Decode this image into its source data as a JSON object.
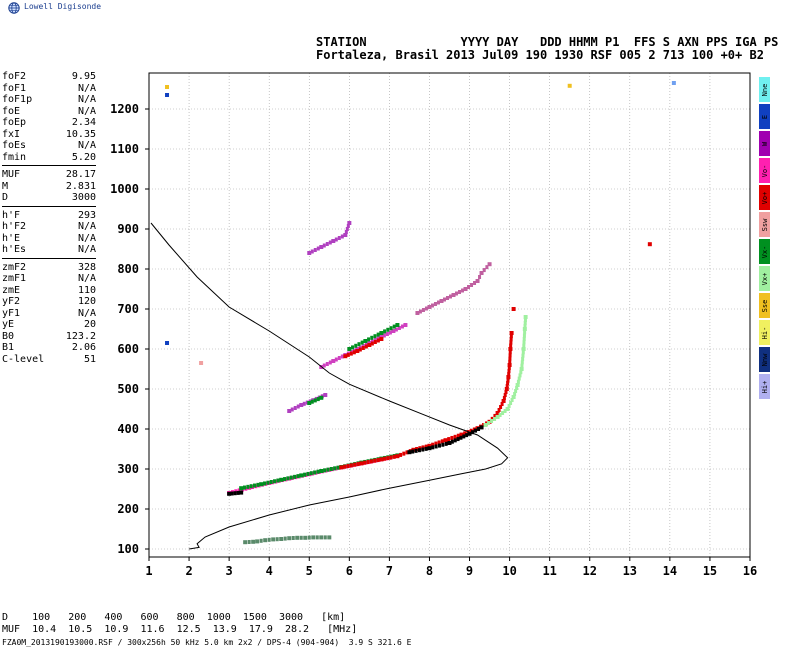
{
  "brand": {
    "name": "Lowell Digisonde",
    "icon": "globe-icon"
  },
  "station_header": {
    "line1": "STATION             YYYY DAY   DDD HHMM P1  FFS S AXN PPS IGA PS",
    "line2": "Fortaleza, Brasil 2013 Jul09 190 1930 RSF 005 2 713 100 +0+ B2"
  },
  "params": {
    "group1": [
      {
        "label": "foF2",
        "value": "9.95"
      },
      {
        "label": "foF1",
        "value": "N/A"
      },
      {
        "label": "foF1p",
        "value": "N/A"
      },
      {
        "label": "foE",
        "value": "N/A"
      },
      {
        "label": "foEp",
        "value": "2.34"
      },
      {
        "label": "fxI",
        "value": "10.35"
      },
      {
        "label": "foEs",
        "value": "N/A"
      },
      {
        "label": "fmin",
        "value": "5.20"
      }
    ],
    "group2": [
      {
        "label": "MUF",
        "value": "28.17"
      },
      {
        "label": "M",
        "value": "2.831"
      },
      {
        "label": "D",
        "value": "3000"
      }
    ],
    "group3": [
      {
        "label": "h'F",
        "value": "293"
      },
      {
        "label": "h'F2",
        "value": "N/A"
      },
      {
        "label": "h'E",
        "value": "N/A"
      },
      {
        "label": "h'Es",
        "value": "N/A"
      }
    ],
    "group4": [
      {
        "label": "zmF2",
        "value": "328"
      },
      {
        "label": "zmF1",
        "value": "N/A"
      },
      {
        "label": "zmE",
        "value": "110"
      },
      {
        "label": "yF2",
        "value": "120"
      },
      {
        "label": "yF1",
        "value": "N/A"
      },
      {
        "label": "yE",
        "value": "20"
      },
      {
        "label": "B0",
        "value": "123.2"
      },
      {
        "label": "B1",
        "value": "2.06"
      },
      {
        "label": "C-level",
        "value": "51"
      }
    ]
  },
  "legend": [
    {
      "label": "Nne",
      "color": "#70f0f0"
    },
    {
      "label": "E",
      "color": "#1040c0"
    },
    {
      "label": "W",
      "color": "#a000b0"
    },
    {
      "label": "Vo-",
      "color": "#ff20b0"
    },
    {
      "label": "Vo+",
      "color": "#e00000"
    },
    {
      "label": "Ssw",
      "color": "#f0a0a0"
    },
    {
      "label": "Vx-",
      "color": "#009020"
    },
    {
      "label": "Vx+",
      "color": "#a0f0a0"
    },
    {
      "label": "Sse",
      "color": "#f0c020"
    },
    {
      "label": "Hi-",
      "color": "#f0f060"
    },
    {
      "label": "Nnw",
      "color": "#103080"
    },
    {
      "label": "Hi+",
      "color": "#b0b0f0"
    }
  ],
  "muf_table": {
    "row1": "D    100   200   400   600   800  1000  1500  3000   [km]",
    "row2": "MUF  10.4  10.5  10.9  11.6  12.5  13.9  17.9  28.2   [MHz]"
  },
  "footer": "FZA0M_2013190193000.RSF / 300x256h 50 kHz 5.0 km 2x2 / DPS-4 (904-904)  3.9 S 321.6 E",
  "chart_data": {
    "type": "scatter",
    "xlim": [
      1,
      16
    ],
    "ylim": [
      80,
      1290
    ],
    "xticks": [
      1,
      2,
      3,
      4,
      5,
      6,
      7,
      8,
      9,
      10,
      11,
      12,
      13,
      14,
      15,
      16
    ],
    "yticks": [
      100,
      200,
      300,
      400,
      500,
      600,
      700,
      800,
      900,
      1000,
      1100,
      1200
    ],
    "grid": true,
    "profile_curve": {
      "color": "#000000",
      "points": [
        [
          2.0,
          100
        ],
        [
          2.25,
          104
        ],
        [
          2.2,
          113
        ],
        [
          2.4,
          130
        ],
        [
          3.0,
          155
        ],
        [
          4.0,
          185
        ],
        [
          5.0,
          210
        ],
        [
          6.0,
          230
        ],
        [
          7.0,
          252
        ],
        [
          8.0,
          272
        ],
        [
          8.8,
          288
        ],
        [
          9.4,
          300
        ],
        [
          9.8,
          313
        ],
        [
          9.95,
          328
        ],
        [
          9.7,
          352
        ],
        [
          9.2,
          385
        ],
        [
          8.5,
          410
        ],
        [
          7.8,
          438
        ],
        [
          7.0,
          470
        ],
        [
          6.0,
          512
        ],
        [
          5.5,
          540
        ],
        [
          5.0,
          580
        ],
        [
          4.0,
          645
        ],
        [
          3.0,
          705
        ],
        [
          2.2,
          780
        ],
        [
          1.5,
          860
        ],
        [
          1.05,
          915
        ]
      ]
    },
    "traces": [
      {
        "name": "E-layer trace",
        "color": "#5a8a6a",
        "points": [
          [
            3.4,
            117
          ],
          [
            3.6,
            118
          ],
          [
            3.7,
            119
          ],
          [
            3.9,
            122
          ],
          [
            4.1,
            124
          ],
          [
            4.3,
            125
          ],
          [
            4.5,
            127
          ],
          [
            4.7,
            128
          ],
          [
            4.9,
            128
          ],
          [
            5.1,
            129
          ],
          [
            5.3,
            129
          ],
          [
            5.5,
            129
          ]
        ]
      },
      {
        "name": "F trace Vo-",
        "color": "#ff20b0",
        "points": [
          [
            3.0,
            240
          ],
          [
            3.5,
            253
          ],
          [
            4.0,
            265
          ],
          [
            4.5,
            276
          ],
          [
            5.0,
            287
          ],
          [
            5.5,
            298
          ],
          [
            6.0,
            308
          ],
          [
            6.5,
            318
          ],
          [
            7.0,
            328
          ]
        ]
      },
      {
        "name": "F trace Vx-",
        "color": "#009020",
        "points": [
          [
            3.3,
            252
          ],
          [
            3.8,
            262
          ],
          [
            4.3,
            273
          ],
          [
            4.8,
            284
          ],
          [
            5.3,
            295
          ],
          [
            5.8,
            305
          ],
          [
            6.3,
            316
          ],
          [
            6.8,
            326
          ],
          [
            7.2,
            334
          ]
        ]
      },
      {
        "name": "F trace Vo+",
        "color": "#e00000",
        "points": [
          [
            5.8,
            304
          ],
          [
            6.3,
            314
          ],
          [
            6.8,
            324
          ],
          [
            7.2,
            332
          ],
          [
            7.6,
            348
          ],
          [
            8.0,
            358
          ],
          [
            8.4,
            372
          ],
          [
            8.8,
            386
          ],
          [
            9.2,
            402
          ],
          [
            9.5,
            418
          ],
          [
            9.7,
            440
          ],
          [
            9.85,
            470
          ],
          [
            9.93,
            500
          ],
          [
            9.97,
            530
          ],
          [
            10.0,
            560
          ],
          [
            10.02,
            600
          ],
          [
            10.05,
            640
          ]
        ]
      },
      {
        "name": "F trace Vx+",
        "color": "#a0f0a0",
        "points": [
          [
            9.4,
            410
          ],
          [
            9.7,
            430
          ],
          [
            9.95,
            450
          ],
          [
            10.1,
            480
          ],
          [
            10.2,
            510
          ],
          [
            10.3,
            550
          ],
          [
            10.35,
            600
          ],
          [
            10.38,
            650
          ],
          [
            10.4,
            680
          ]
        ]
      },
      {
        "name": "F trace black",
        "color": "#000000",
        "points": [
          [
            3.0,
            238
          ],
          [
            3.3,
            241
          ],
          [
            7.5,
            342
          ],
          [
            8.0,
            352
          ],
          [
            8.5,
            365
          ],
          [
            9.0,
            388
          ],
          [
            9.3,
            404
          ]
        ]
      },
      {
        "name": "2F Vo-",
        "color": "#d040c0",
        "points": [
          [
            5.3,
            555
          ],
          [
            5.6,
            570
          ],
          [
            5.9,
            585
          ],
          [
            6.2,
            600
          ],
          [
            6.5,
            615
          ],
          [
            6.8,
            630
          ],
          [
            7.1,
            645
          ],
          [
            7.4,
            660
          ]
        ]
      },
      {
        "name": "2F Vo+",
        "color": "#e00000",
        "points": [
          [
            5.9,
            582
          ],
          [
            6.2,
            595
          ],
          [
            6.5,
            610
          ],
          [
            6.8,
            625
          ]
        ]
      },
      {
        "name": "2F Vx-",
        "color": "#009020",
        "points": [
          [
            6.0,
            600
          ],
          [
            6.4,
            620
          ],
          [
            6.8,
            640
          ],
          [
            7.2,
            660
          ]
        ]
      },
      {
        "name": "3F trace",
        "color": "#c060a0",
        "points": [
          [
            7.7,
            690
          ],
          [
            8.0,
            705
          ],
          [
            8.3,
            720
          ],
          [
            8.6,
            735
          ],
          [
            8.9,
            750
          ],
          [
            9.2,
            770
          ],
          [
            9.3,
            790
          ],
          [
            9.5,
            812
          ]
        ]
      },
      {
        "name": "4F trace",
        "color": "#b040c0",
        "points": [
          [
            5.0,
            840
          ],
          [
            5.3,
            855
          ],
          [
            5.6,
            870
          ],
          [
            5.9,
            885
          ],
          [
            6.0,
            915
          ]
        ]
      },
      {
        "name": "echo 480",
        "color": "#b040c0",
        "points": [
          [
            4.5,
            445
          ],
          [
            4.8,
            460
          ],
          [
            5.1,
            472
          ],
          [
            5.4,
            485
          ]
        ]
      },
      {
        "name": "echo 480 green",
        "color": "#009020",
        "points": [
          [
            5.0,
            465
          ],
          [
            5.3,
            478
          ]
        ]
      },
      {
        "name": "spurious",
        "color": "#e00000",
        "points": [
          [
            13.5,
            862
          ],
          [
            10.1,
            700
          ]
        ]
      },
      {
        "name": "spurious blue",
        "color": "#1040c0",
        "points": [
          [
            1.45,
            615
          ],
          [
            1.45,
            1235
          ]
        ]
      },
      {
        "name": "spurious yellow",
        "color": "#f0c020",
        "points": [
          [
            1.45,
            1255
          ],
          [
            11.5,
            1258
          ]
        ]
      },
      {
        "name": "spurious cyan",
        "color": "#70a0f0",
        "points": [
          [
            14.1,
            1265
          ]
        ]
      },
      {
        "name": "spurious pink",
        "color": "#f0a0a0",
        "points": [
          [
            2.3,
            565
          ]
        ]
      }
    ]
  }
}
